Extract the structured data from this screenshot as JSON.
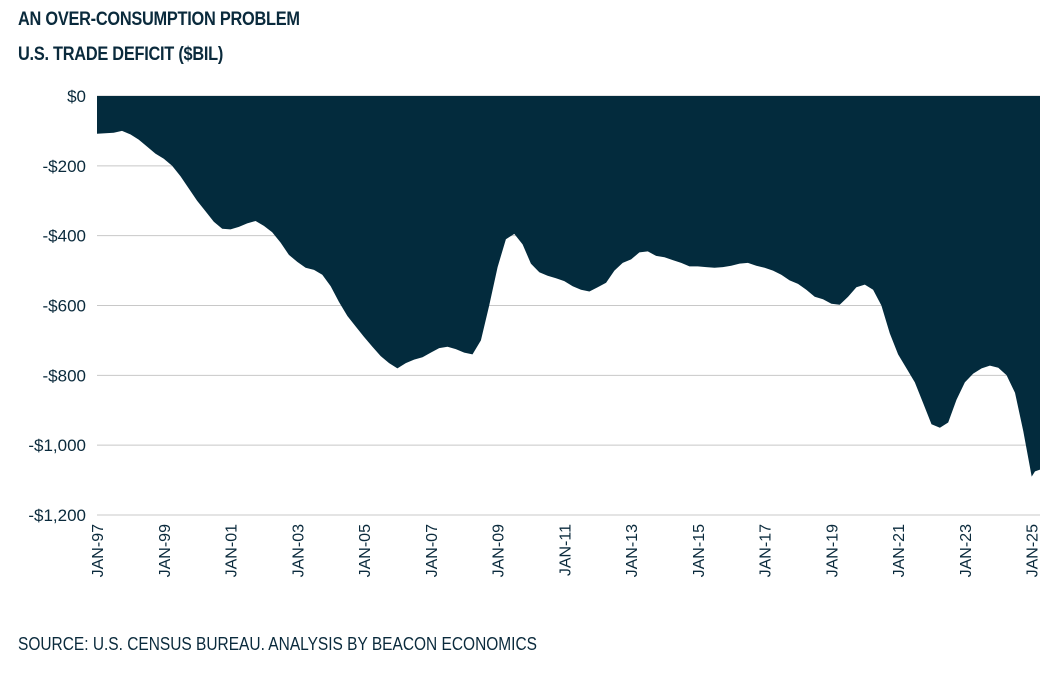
{
  "header": {
    "title": "AN OVER-CONSUMPTION PROBLEM",
    "subtitle": "U.S. TRADE DEFICIT ($BIL)"
  },
  "footer": {
    "source": "SOURCE: U.S. CENSUS BUREAU. ANALYSIS BY BEACON ECONOMICS"
  },
  "colors": {
    "fill": "#032b3d",
    "grid": "#c8c8c8",
    "text": "#0a2a3c"
  },
  "chart_data": {
    "type": "area",
    "title": "AN OVER-CONSUMPTION PROBLEM",
    "subtitle": "U.S. TRADE DEFICIT ($BIL)",
    "xlabel": "",
    "ylabel": "",
    "grid": true,
    "legend": "none",
    "ylim": [
      -1200,
      0
    ],
    "yticks": [
      0,
      -200,
      -400,
      -600,
      -800,
      -1000,
      -1200
    ],
    "ytick_labels": [
      "$0",
      "-$200",
      "-$400",
      "-$600",
      "-$800",
      "-$1,000",
      "-$1,200"
    ],
    "xlim": [
      1997.0,
      2025.25
    ],
    "xticks": [
      1997,
      1999,
      2001,
      2003,
      2005,
      2007,
      2009,
      2011,
      2013,
      2015,
      2017,
      2019,
      2021,
      2023,
      2025
    ],
    "xtick_labels": [
      "JAN-97",
      "JAN-99",
      "JAN-01",
      "JAN-03",
      "JAN-05",
      "JAN-07",
      "JAN-09",
      "JAN-11",
      "JAN-13",
      "JAN-15",
      "JAN-17",
      "JAN-19",
      "JAN-21",
      "JAN-23",
      "JAN-25"
    ],
    "series": [
      {
        "x": [
          1997.0,
          1997.5,
          1997.75,
          1998.0,
          1998.25,
          1998.5,
          1998.75,
          1999.0,
          1999.25,
          1999.5,
          1999.75,
          2000.0,
          2000.25,
          2000.5,
          2000.75,
          2001.0,
          2001.25,
          2001.5,
          2001.75,
          2002.0,
          2002.25,
          2002.5,
          2002.75,
          2003.0,
          2003.25,
          2003.5,
          2003.75,
          2004.0,
          2004.25,
          2004.5,
          2004.75,
          2005.0,
          2005.25,
          2005.5,
          2005.75,
          2006.0,
          2006.25,
          2006.5,
          2006.75,
          2007.0,
          2007.25,
          2007.5,
          2007.75,
          2008.0,
          2008.25,
          2008.5,
          2008.75,
          2009.0,
          2009.25,
          2009.5,
          2009.75,
          2010.0,
          2010.25,
          2010.5,
          2010.75,
          2011.0,
          2011.25,
          2011.5,
          2011.75,
          2012.0,
          2012.25,
          2012.5,
          2012.75,
          2013.0,
          2013.25,
          2013.5,
          2013.75,
          2014.0,
          2014.25,
          2014.5,
          2014.75,
          2015.0,
          2015.25,
          2015.5,
          2015.75,
          2016.0,
          2016.25,
          2016.5,
          2016.75,
          2017.0,
          2017.25,
          2017.5,
          2017.75,
          2018.0,
          2018.25,
          2018.5,
          2018.75,
          2019.0,
          2019.25,
          2019.5,
          2019.75,
          2020.0,
          2020.25,
          2020.5,
          2020.75,
          2021.0,
          2021.25,
          2021.5,
          2021.75,
          2022.0,
          2022.25,
          2022.5,
          2022.75,
          2023.0,
          2023.25,
          2023.5,
          2023.75,
          2024.0,
          2024.25,
          2024.5,
          2024.75,
          2025.0,
          2025.1,
          2025.25
        ],
        "values": [
          -108,
          -105,
          -100,
          -110,
          -125,
          -145,
          -165,
          -180,
          -200,
          -230,
          -265,
          -300,
          -330,
          -360,
          -380,
          -382,
          -375,
          -365,
          -358,
          -372,
          -390,
          -420,
          -455,
          -475,
          -492,
          -498,
          -512,
          -545,
          -590,
          -630,
          -660,
          -690,
          -718,
          -745,
          -765,
          -780,
          -765,
          -755,
          -748,
          -735,
          -722,
          -718,
          -725,
          -735,
          -740,
          -700,
          -600,
          -490,
          -410,
          -395,
          -425,
          -480,
          -505,
          -515,
          -522,
          -530,
          -545,
          -555,
          -560,
          -548,
          -535,
          -500,
          -478,
          -468,
          -448,
          -445,
          -458,
          -462,
          -470,
          -478,
          -488,
          -488,
          -490,
          -492,
          -490,
          -486,
          -480,
          -478,
          -486,
          -492,
          -500,
          -512,
          -528,
          -538,
          -555,
          -575,
          -582,
          -595,
          -598,
          -575,
          -548,
          -540,
          -555,
          -600,
          -680,
          -740,
          -780,
          -820,
          -880,
          -940,
          -950,
          -935,
          -870,
          -820,
          -795,
          -780,
          -772,
          -778,
          -800,
          -850,
          -960,
          -1090,
          -1075,
          -1070
        ]
      }
    ]
  }
}
